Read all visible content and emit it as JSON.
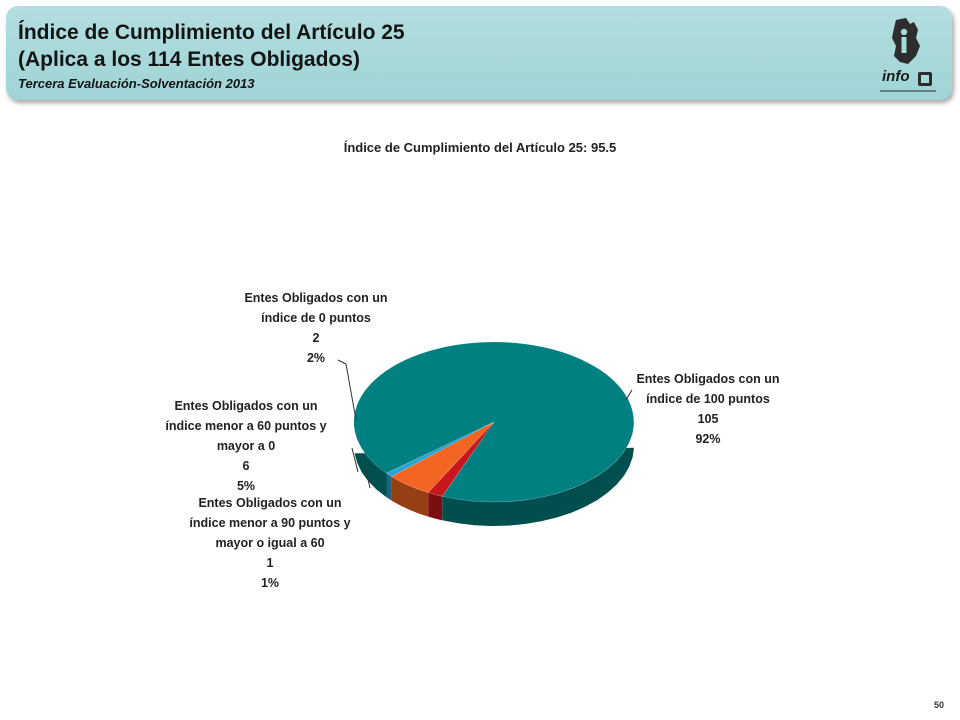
{
  "header": {
    "title_line1": "Índice de Cumplimiento del Artículo 25",
    "title_line2": "(Aplica a los 114 Entes Obligados)",
    "subtitle": "Tercera Evaluación-Solventación 2013",
    "logo_text": "info",
    "logo_icon": "infodf-logo"
  },
  "chart_data": {
    "type": "pie",
    "title": "Índice de Cumplimiento del Artículo 25: 95.5",
    "slices": [
      {
        "label_lines": [
          "Entes Obligados con un",
          "índice de 100 puntos"
        ],
        "value": 105,
        "percent": "92%",
        "color": "#008080"
      },
      {
        "label_lines": [
          "Entes Obligados con un",
          "índice menor a 90 puntos y",
          "mayor o igual a 60"
        ],
        "value": 1,
        "percent": "1%",
        "color": "#29a3d6"
      },
      {
        "label_lines": [
          "Entes Obligados con un",
          "índice menor a 60 puntos y",
          "mayor a 0"
        ],
        "value": 6,
        "percent": "5%",
        "color": "#f26522"
      },
      {
        "label_lines": [
          "Entes Obligados con un",
          "índice de 0 puntos"
        ],
        "value": 2,
        "percent": "2%",
        "color": "#c8161d"
      }
    ],
    "legend": "none",
    "style": "3d"
  },
  "footer": {
    "page_number": "50"
  }
}
